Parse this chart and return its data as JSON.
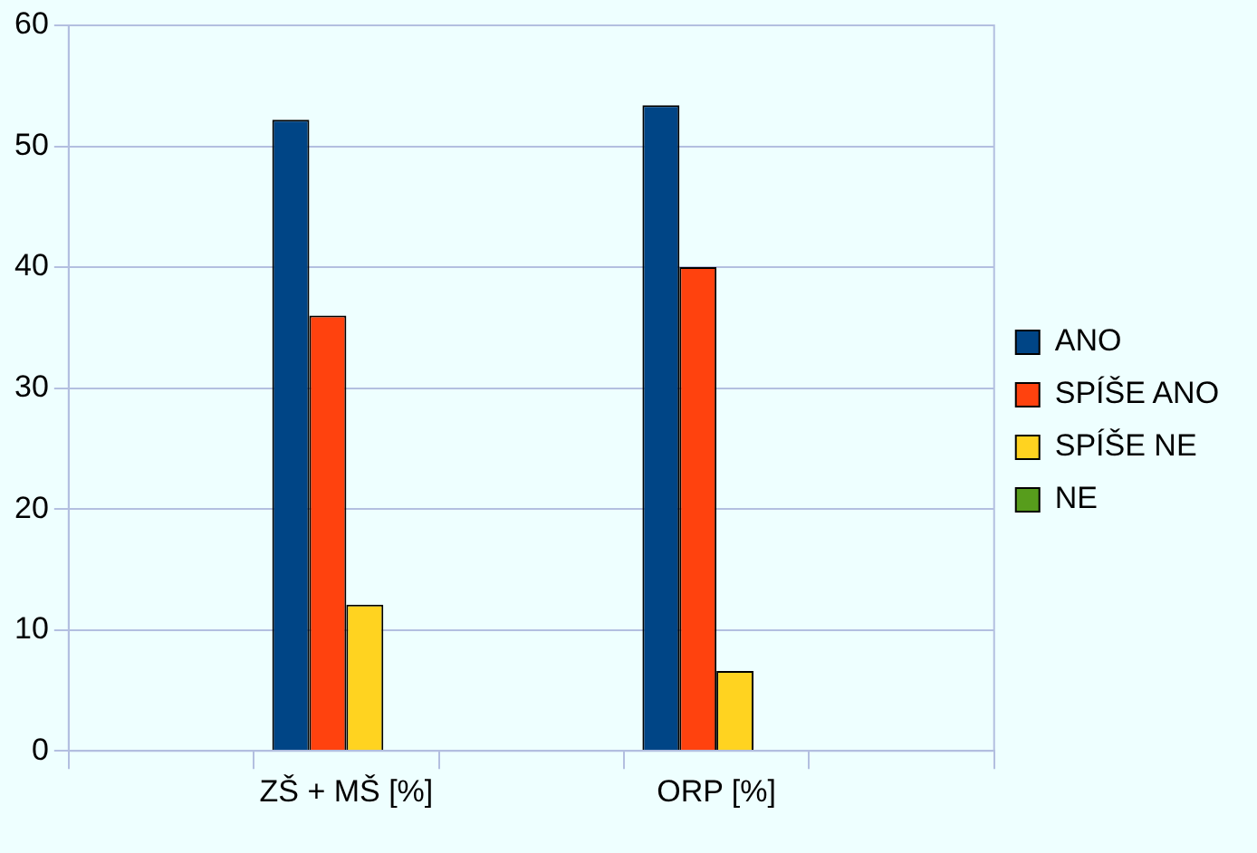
{
  "chart_data": {
    "type": "bar",
    "categories": [
      null,
      "ZŠ + MŠ [%]",
      null,
      "ORP [%]",
      null
    ],
    "series": [
      {
        "name": "ANO",
        "color": "#004586",
        "values": [
          null,
          52.2,
          null,
          53.4,
          null
        ]
      },
      {
        "name": "SPÍŠE ANO",
        "color": "#ff420e",
        "values": [
          null,
          36,
          null,
          40,
          null
        ]
      },
      {
        "name": "SPÍŠE NE",
        "color": "#ffd320",
        "values": [
          null,
          12.1,
          null,
          6.6,
          null
        ]
      },
      {
        "name": "NE",
        "color": "#579d1c",
        "values": [
          null,
          0,
          null,
          0,
          null
        ]
      }
    ],
    "ylim": [
      0,
      60
    ],
    "yticks": [
      0,
      10,
      20,
      30,
      40,
      50,
      60
    ],
    "grid": "y",
    "legend": "right"
  }
}
